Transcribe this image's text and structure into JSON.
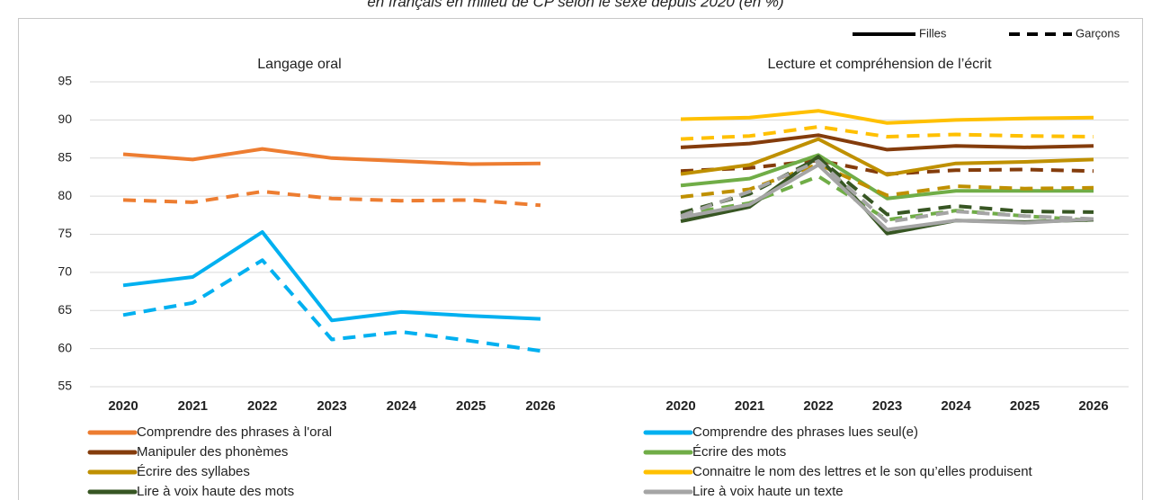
{
  "chart_data": {
    "type": "line",
    "title": "en français en milieu de CP selon le sexe depuis 2020 (en %)",
    "ylim": [
      55,
      95
    ],
    "yticks": [
      55,
      60,
      65,
      70,
      75,
      80,
      85,
      90,
      95
    ],
    "grid": true,
    "categories": [
      "2020",
      "2021",
      "2022",
      "2023",
      "2024",
      "2025",
      "2026"
    ],
    "sexes": [
      {
        "name": "Filles",
        "dashed": false
      },
      {
        "name": "Garçons",
        "dashed": true
      }
    ],
    "panels": [
      {
        "title": "Langage oral",
        "series": [
          {
            "name": "Comprendre des phrases à l'oral",
            "color": "#ED7D31",
            "values": [
              [
                85.5,
                84.8,
                86.2,
                85.0,
                84.6,
                84.2,
                84.3
              ],
              [
                79.5,
                79.2,
                80.6,
                79.7,
                79.4,
                79.5,
                78.8
              ]
            ]
          },
          {
            "name": "Comprendre des phrases lues seul(e)",
            "color": "#00B0F0",
            "values": [
              [
                68.3,
                69.4,
                75.3,
                63.7,
                64.8,
                64.3,
                63.9
              ],
              [
                64.4,
                66.0,
                71.6,
                61.2,
                62.2,
                61.0,
                59.7
              ]
            ]
          }
        ]
      },
      {
        "title": "Lecture et compréhension de l’écrit",
        "series": [
          {
            "name": "Manipuler des phonèmes",
            "color": "#843C0C",
            "values": [
              [
                86.4,
                86.9,
                88.0,
                86.1,
                86.6,
                86.4,
                86.6
              ],
              [
                83.3,
                83.7,
                84.7,
                82.9,
                83.4,
                83.5,
                83.3
              ]
            ]
          },
          {
            "name": "Écrire des mots",
            "color": "#70AD47",
            "values": [
              [
                81.4,
                82.3,
                85.4,
                79.7,
                80.7,
                80.7,
                80.7
              ],
              [
                77.6,
                79.1,
                82.6,
                76.9,
                78.1,
                77.4,
                76.8
              ]
            ]
          },
          {
            "name": "Écrire des syllabes",
            "color": "#BF9000",
            "values": [
              [
                82.9,
                84.1,
                87.5,
                82.8,
                84.3,
                84.5,
                84.8
              ],
              [
                79.9,
                80.9,
                84.2,
                80.1,
                81.3,
                81.0,
                81.1
              ]
            ]
          },
          {
            "name": "Connaitre le nom des lettres et le son qu’elles produisent",
            "color": "#FFC000",
            "values": [
              [
                90.1,
                90.3,
                91.2,
                89.6,
                90.0,
                90.2,
                90.3
              ],
              [
                87.5,
                87.9,
                89.1,
                87.8,
                88.1,
                87.9,
                87.8
              ]
            ]
          },
          {
            "name": "Lire à voix haute des mots",
            "color": "#375623",
            "values": [
              [
                76.7,
                78.6,
                85.2,
                75.1,
                76.8,
                76.6,
                76.9
              ],
              [
                77.8,
                80.3,
                85.0,
                77.6,
                78.7,
                78.0,
                77.9
              ]
            ]
          },
          {
            "name": "Lire à voix haute un texte",
            "color": "#A5A5A5",
            "values": [
              [
                77.2,
                78.9,
                84.1,
                75.6,
                76.8,
                76.5,
                77.0
              ],
              [
                77.4,
                80.6,
                84.6,
                76.6,
                78.0,
                77.4,
                77.0
              ]
            ]
          }
        ]
      }
    ]
  }
}
